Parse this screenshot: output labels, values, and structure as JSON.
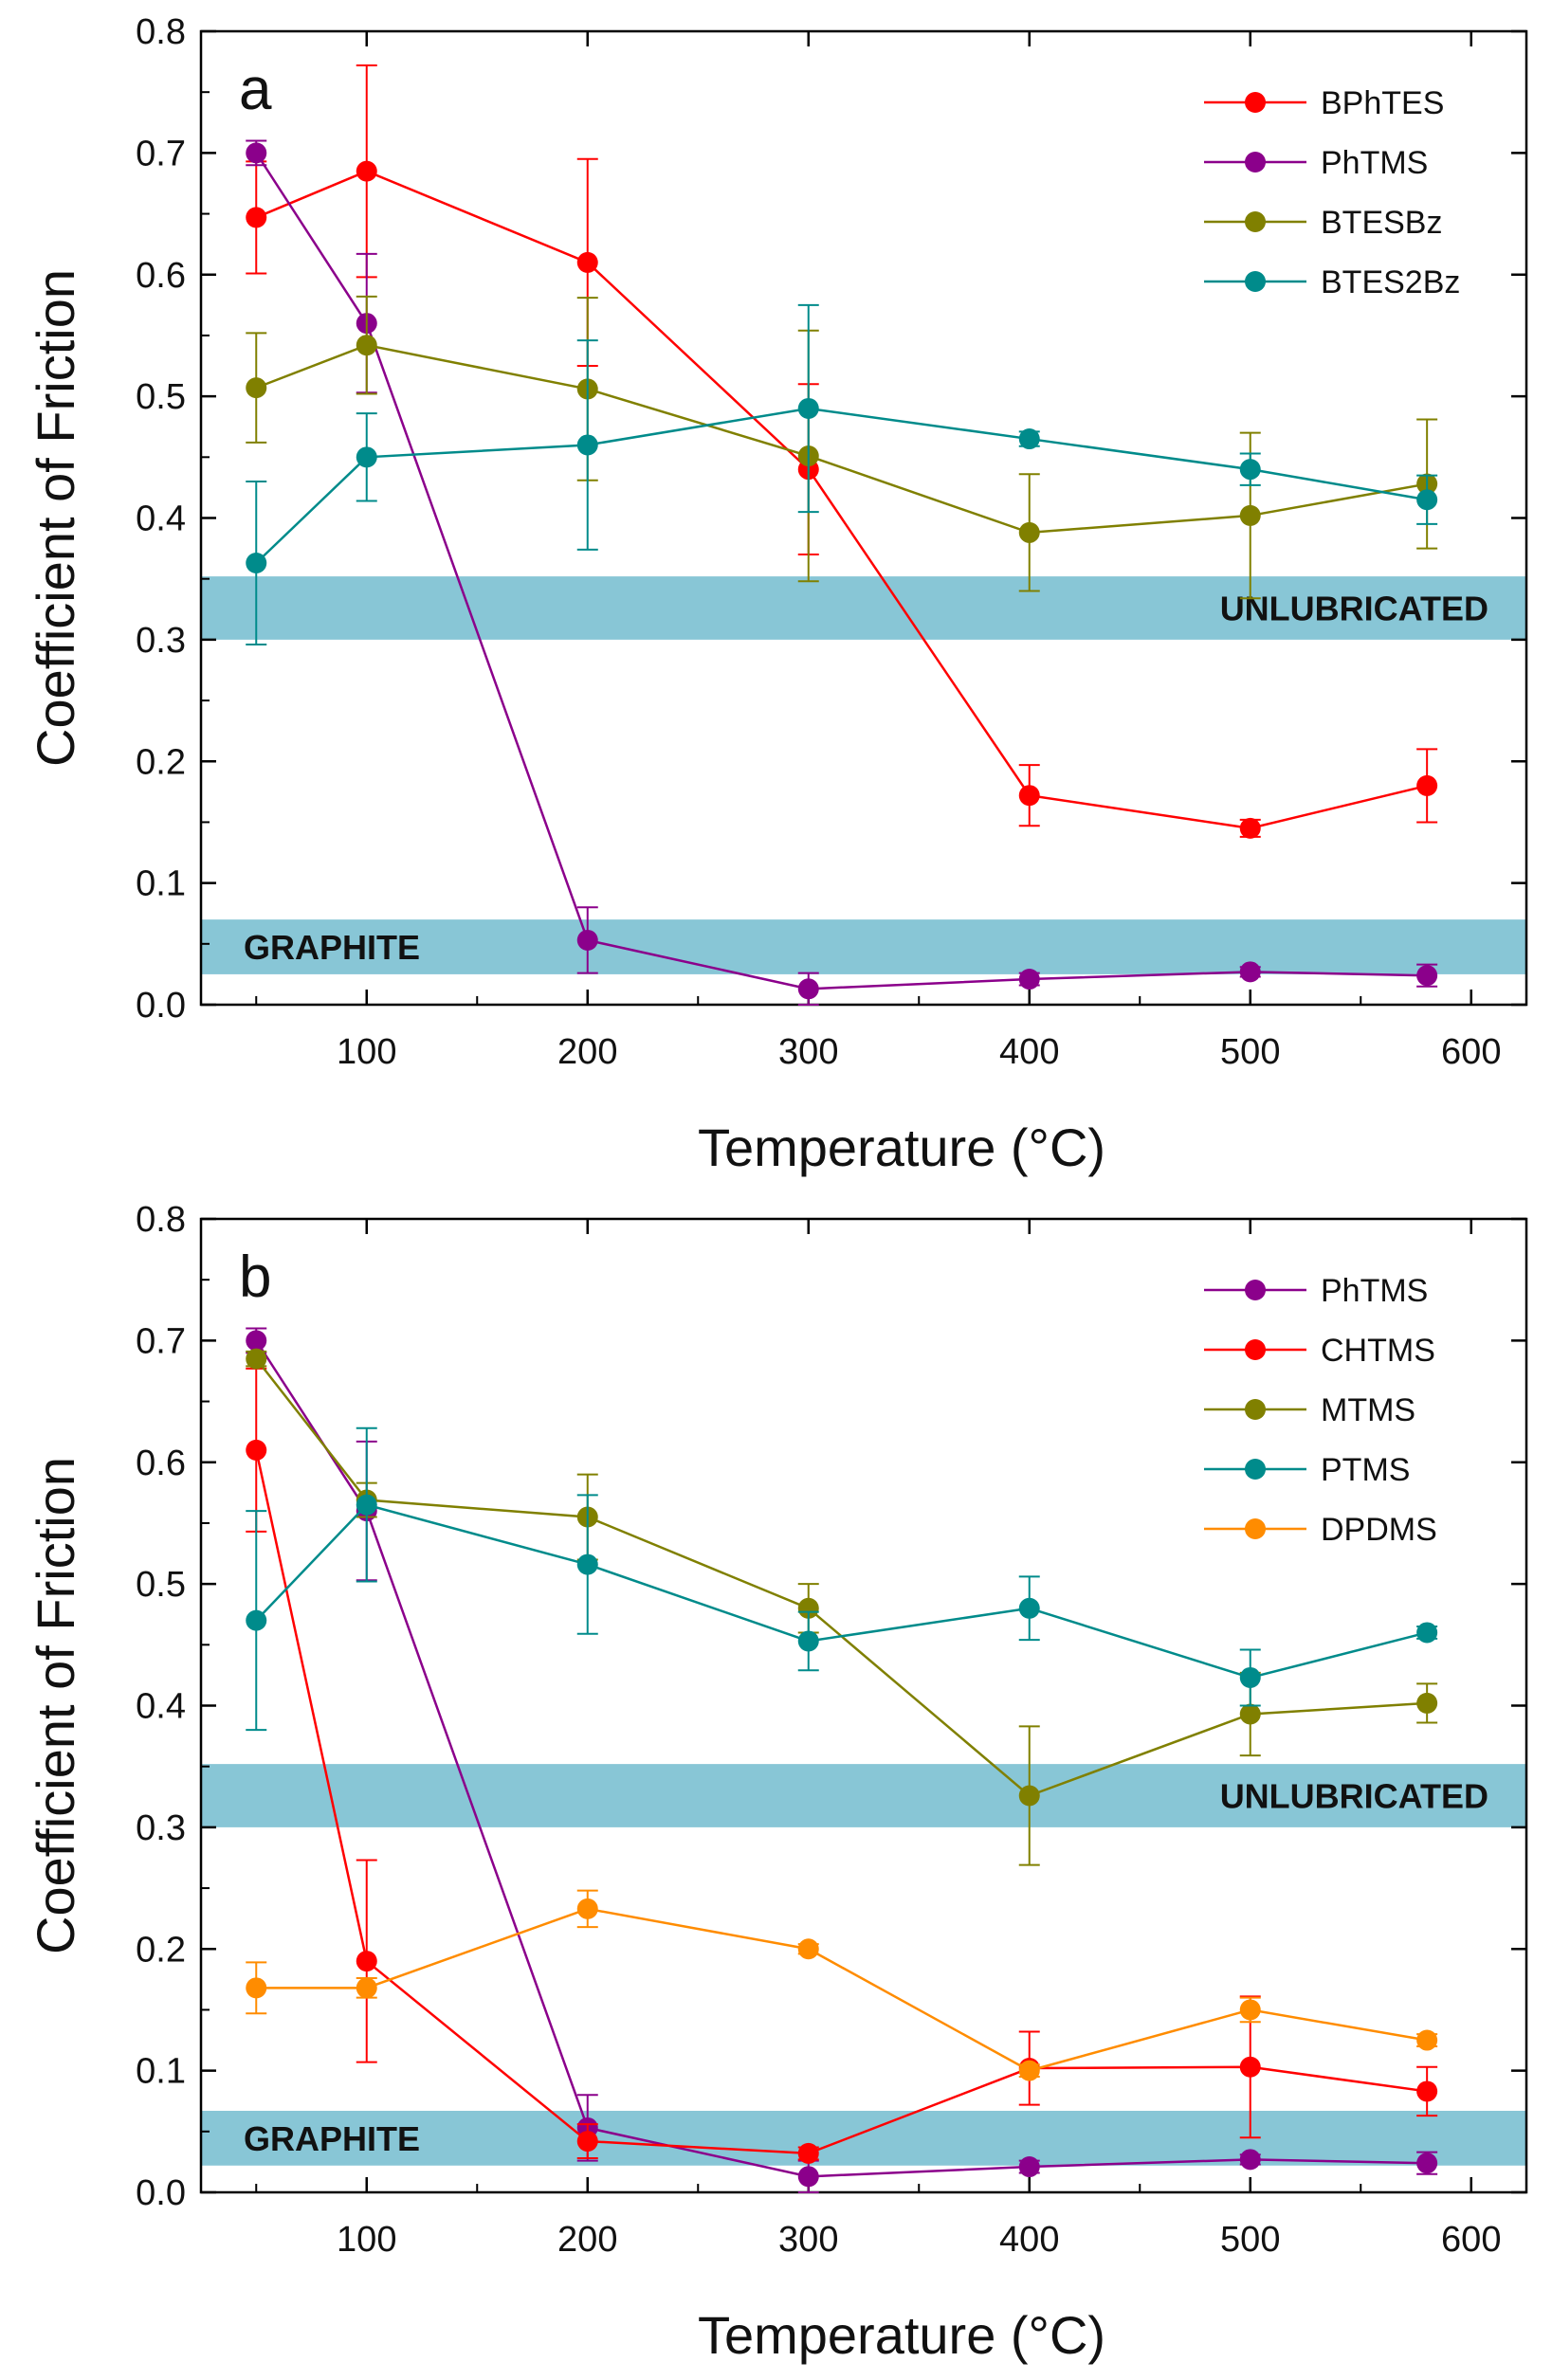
{
  "charts": [
    {
      "panel": "a",
      "chart_data": {
        "type": "line",
        "xlabel": "Temperature (°C)",
        "ylabel": "Coefficient of Friction",
        "xlim": [
          25,
          625
        ],
        "ylim": [
          0,
          0.8
        ],
        "xticks": [
          100,
          200,
          300,
          400,
          500,
          600
        ],
        "xtick_labels": [
          "100",
          "200",
          "300",
          "400",
          "500",
          "600"
        ],
        "yticks": [
          0,
          0.1,
          0.2,
          0.3,
          0.4,
          0.5,
          0.6,
          0.7,
          0.8
        ],
        "ytick_labels": [
          "0.0",
          "0.1",
          "0.2",
          "0.3",
          "0.4",
          "0.5",
          "0.6",
          "0.7",
          "0.8"
        ],
        "legend_position": "top-right",
        "bands": [
          {
            "label": "UNLUBRICATED",
            "y0": 0.3,
            "y1": 0.352,
            "label_side": "right"
          },
          {
            "label": "GRAPHITE",
            "y0": 0.025,
            "y1": 0.07,
            "label_side": "left"
          }
        ],
        "series": [
          {
            "name": "BPhTES",
            "color": "#ff0000",
            "x": [
              50,
              100,
              200,
              300,
              400,
              500,
              580
            ],
            "y": [
              0.647,
              0.685,
              0.61,
              0.44,
              0.172,
              0.145,
              0.18
            ],
            "err": [
              0.046,
              0.087,
              0.085,
              0.07,
              0.025,
              0.007,
              0.03
            ]
          },
          {
            "name": "PhTMS",
            "color": "#8b008b",
            "x": [
              50,
              100,
              200,
              300,
              400,
              500,
              580
            ],
            "y": [
              0.7,
              0.56,
              0.053,
              0.013,
              0.021,
              0.027,
              0.024
            ],
            "err": [
              0.01,
              0.057,
              0.027,
              0.013,
              0.005,
              0.004,
              0.009
            ]
          },
          {
            "name": "BTESBz",
            "color": "#808000",
            "x": [
              50,
              100,
              200,
              300,
              400,
              500,
              580
            ],
            "y": [
              0.507,
              0.542,
              0.506,
              0.451,
              0.388,
              0.402,
              0.428
            ],
            "err": [
              0.045,
              0.04,
              0.075,
              0.103,
              0.048,
              0.068,
              0.053
            ]
          },
          {
            "name": "BTES2Bz",
            "color": "#008b8b",
            "x": [
              50,
              100,
              200,
              300,
              400,
              500,
              580
            ],
            "y": [
              0.363,
              0.45,
              0.46,
              0.49,
              0.465,
              0.44,
              0.415
            ],
            "err": [
              0.067,
              0.036,
              0.086,
              0.085,
              0.006,
              0.013,
              0.02
            ]
          }
        ]
      }
    },
    {
      "panel": "b",
      "chart_data": {
        "type": "line",
        "xlabel": "Temperature (°C)",
        "ylabel": "Coefficient of Friction",
        "xlim": [
          25,
          625
        ],
        "ylim": [
          0,
          0.8
        ],
        "xticks": [
          100,
          200,
          300,
          400,
          500,
          600
        ],
        "xtick_labels": [
          "100",
          "200",
          "300",
          "400",
          "500",
          "600"
        ],
        "yticks": [
          0,
          0.1,
          0.2,
          0.3,
          0.4,
          0.5,
          0.6,
          0.7,
          0.8
        ],
        "ytick_labels": [
          "0.0",
          "0.1",
          "0.2",
          "0.3",
          "0.4",
          "0.5",
          "0.6",
          "0.7",
          "0.8"
        ],
        "legend_position": "top-right",
        "bands": [
          {
            "label": "UNLUBRICATED",
            "y0": 0.3,
            "y1": 0.352,
            "label_side": "right"
          },
          {
            "label": "GRAPHITE",
            "y0": 0.022,
            "y1": 0.067,
            "label_side": "left"
          }
        ],
        "series": [
          {
            "name": "PhTMS",
            "color": "#8b008b",
            "x": [
              50,
              100,
              200,
              300,
              400,
              500,
              580
            ],
            "y": [
              0.7,
              0.56,
              0.053,
              0.013,
              0.021,
              0.027,
              0.024
            ],
            "err": [
              0.01,
              0.057,
              0.027,
              0.013,
              0.005,
              0.004,
              0.009
            ]
          },
          {
            "name": "CHTMS",
            "color": "#ff0000",
            "x": [
              50,
              100,
              200,
              300,
              400,
              500,
              580
            ],
            "y": [
              0.61,
              0.19,
              0.042,
              0.032,
              0.102,
              0.103,
              0.083
            ],
            "err": [
              0.067,
              0.083,
              0.014,
              0.005,
              0.03,
              0.058,
              0.02
            ]
          },
          {
            "name": "MTMS",
            "color": "#808000",
            "x": [
              50,
              100,
              200,
              300,
              400,
              500,
              580
            ],
            "y": [
              0.685,
              0.569,
              0.555,
              0.48,
              0.326,
              0.393,
              0.402
            ],
            "err": [
              0.006,
              0.014,
              0.035,
              0.02,
              0.057,
              0.034,
              0.016
            ]
          },
          {
            "name": "PTMS",
            "color": "#008b8b",
            "x": [
              50,
              100,
              200,
              300,
              400,
              500,
              580
            ],
            "y": [
              0.47,
              0.565,
              0.516,
              0.453,
              0.48,
              0.423,
              0.46
            ],
            "err": [
              0.09,
              0.063,
              0.057,
              0.024,
              0.026,
              0.023,
              0.005
            ]
          },
          {
            "name": "DPDMS",
            "color": "#ff8c00",
            "x": [
              50,
              100,
              200,
              300,
              400,
              500,
              580
            ],
            "y": [
              0.168,
              0.168,
              0.233,
              0.2,
              0.1,
              0.15,
              0.125
            ],
            "err": [
              0.021,
              0.008,
              0.015,
              0.004,
              0.005,
              0.01,
              0.005
            ]
          }
        ]
      }
    }
  ],
  "colors": {
    "band": "#88c6d6",
    "axis": "#000000"
  }
}
